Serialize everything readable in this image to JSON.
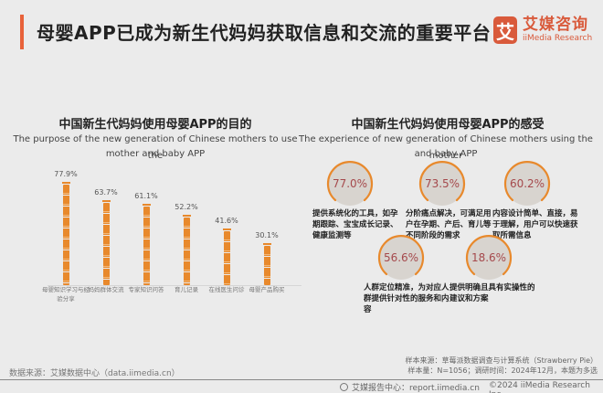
{
  "header": {
    "title": "母婴APP已成为新生代妈妈获取信息和交流的重要平台",
    "logo_mark": "艾",
    "logo_cn": "艾媒咨询",
    "logo_en": "iiMedia Research",
    "accent_color": "#e8623a"
  },
  "left_section": {
    "title": "中国新生代妈妈使用母婴APP的目的",
    "subtitle_line1": "The purpose of the new generation of Chinese mothers to use the",
    "subtitle_line2": "mother and baby APP"
  },
  "right_section": {
    "title": "中国新生代妈妈使用母婴APP的感受",
    "subtitle_line1": "The experience of  new generation of Chinese mothers using the mother",
    "subtitle_line2": "and baby APP",
    "items": [
      {
        "value": "77.0%",
        "text": "提供系统化的工具，如孕期跟踪、宝宝成长记录、健康监测等"
      },
      {
        "value": "73.5%",
        "text": "分阶痛点解决，可满足用户在孕期、产后、育儿等不同阶段的需求"
      },
      {
        "value": "60.2%",
        "text": "内容设计简单、直接，易于理解，用户可以快速获取所需信息"
      },
      {
        "value": "56.6%",
        "text": "人群定位精准，为对应人群提供针对性的服务和内容"
      },
      {
        "value": "18.6%",
        "text": "提供明确且具有实操性的建议和方案"
      }
    ]
  },
  "chart_data": [
    {
      "type": "bar",
      "title": "中国新生代妈妈使用母婴APP的目的",
      "subtitle": "The purpose of the new generation of Chinese mothers to use the mother and baby APP",
      "categories": [
        "母婴知识学习与经验分享",
        "妈妈群体交流",
        "专家知识问答",
        "育儿记录",
        "在线医生问诊",
        "母婴产品购买"
      ],
      "values": [
        77.9,
        63.7,
        61.1,
        52.2,
        41.6,
        30.1
      ],
      "labels": [
        "77.9%",
        "63.7%",
        "61.1%",
        "52.2%",
        "41.6%",
        "30.1%"
      ],
      "xlabel": "",
      "ylabel": "",
      "unit": "%",
      "grid": false,
      "bar_color": "#e8892c"
    },
    {
      "type": "bubble",
      "title": "中国新生代妈妈使用母婴APP的感受",
      "subtitle": "The experience of new generation of Chinese mothers using the mother and baby APP",
      "categories": [
        "提供系统化的工具，如孕期跟踪、宝宝成长记录、健康监测等",
        "分阶痛点解决，可满足用户在孕期、产后、育儿等不同阶段的需求",
        "内容设计简单、直接，易于理解，用户可以快速获取所需信息",
        "人群定位精准，为对应人群提供针对性的服务和内容",
        "提供明确且具有实操性的建议和方案"
      ],
      "values": [
        77.0,
        73.5,
        60.2,
        56.6,
        18.6
      ],
      "unit": "%",
      "ring_color": "#e8892c",
      "value_color": "#a5494c"
    }
  ],
  "footer": {
    "source": "数据来源：艾媒数据中心（data.iimedia.cn）",
    "sample_source": "样本来源：草莓派数据调查与计算系统（Strawberry Pie）",
    "sample_size": "样本量：N=1056；调研时间：2024年12月，本题为多选",
    "report_center": "艾媒报告中心：report.iimedia.cn",
    "copyright": "©2024  iiMedia Research  Inc"
  }
}
